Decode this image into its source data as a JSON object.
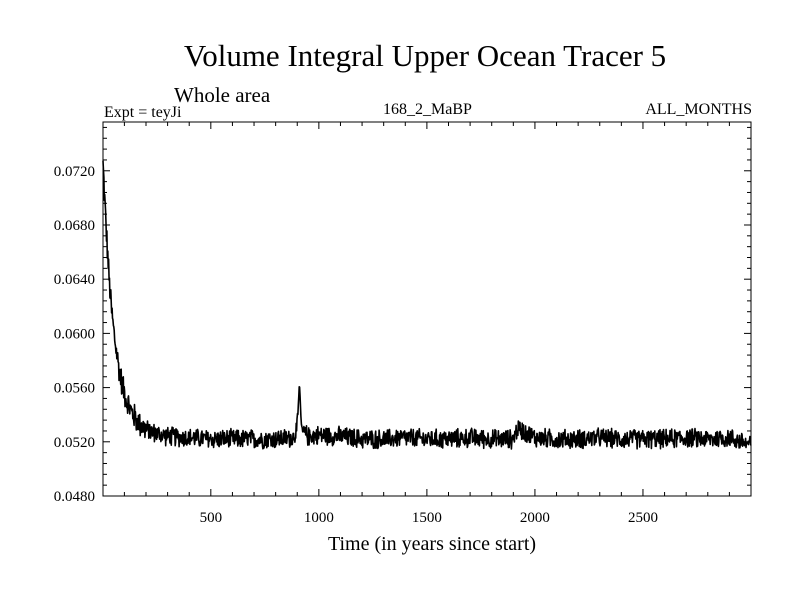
{
  "header": {
    "title": "Volume Integral Upper Ocean Tracer 5",
    "subtitle": "Whole area",
    "experiment": "Expt = teyJi",
    "period": "168_2_MaBP",
    "months": "ALL_MONTHS"
  },
  "chart_data": {
    "type": "line",
    "title": "Volume Integral Upper Ocean Tracer 5",
    "subtitle": "Whole area",
    "xlabel": "Time (in years since start)",
    "ylabel": "",
    "xlim": [
      1,
      3000
    ],
    "ylim": [
      0.048,
      0.0756
    ],
    "xticks": [
      500,
      1000,
      1500,
      2000,
      2500
    ],
    "xtick_labels": [
      "500",
      "1000",
      "1500",
      "2000",
      "2500"
    ],
    "yticks": [
      0.048,
      0.052,
      0.056,
      0.06,
      0.064,
      0.068,
      0.072
    ],
    "ytick_labels": [
      "0.0480",
      "0.0520",
      "0.0560",
      "0.0600",
      "0.0640",
      "0.0680",
      "0.0720"
    ],
    "series": [
      {
        "name": "Upper Ocean Tracer 5",
        "color": "#000000",
        "description": "Exponential decay from ~0.0725 toward ~0.0522, then noisy equilibrium with amplitude ~±0.0008; spike to ~0.0564 near year 910",
        "x": [
          1,
          10,
          20,
          30,
          40,
          50,
          60,
          75,
          90,
          110,
          130,
          160,
          200,
          250,
          300,
          400,
          500,
          600,
          700,
          800,
          880,
          900,
          910,
          920,
          950,
          1000,
          1100,
          1200,
          1300,
          1400,
          1500,
          1600,
          1700,
          1800,
          1900,
          1920,
          2000,
          2100,
          2200,
          2300,
          2400,
          2500,
          2600,
          2700,
          2800,
          2900,
          3000
        ],
        "values": [
          0.0725,
          0.0695,
          0.0665,
          0.0638,
          0.0618,
          0.0603,
          0.059,
          0.0574,
          0.0562,
          0.0551,
          0.0543,
          0.0535,
          0.0529,
          0.0526,
          0.0524,
          0.0523,
          0.0522,
          0.0522,
          0.0522,
          0.0522,
          0.0523,
          0.053,
          0.0564,
          0.0528,
          0.0524,
          0.0525,
          0.0524,
          0.0522,
          0.0522,
          0.0523,
          0.0522,
          0.0522,
          0.0523,
          0.0522,
          0.0522,
          0.053,
          0.0523,
          0.0522,
          0.0522,
          0.0523,
          0.0522,
          0.0522,
          0.0522,
          0.0523,
          0.0522,
          0.0523,
          0.0518
        ]
      }
    ]
  }
}
